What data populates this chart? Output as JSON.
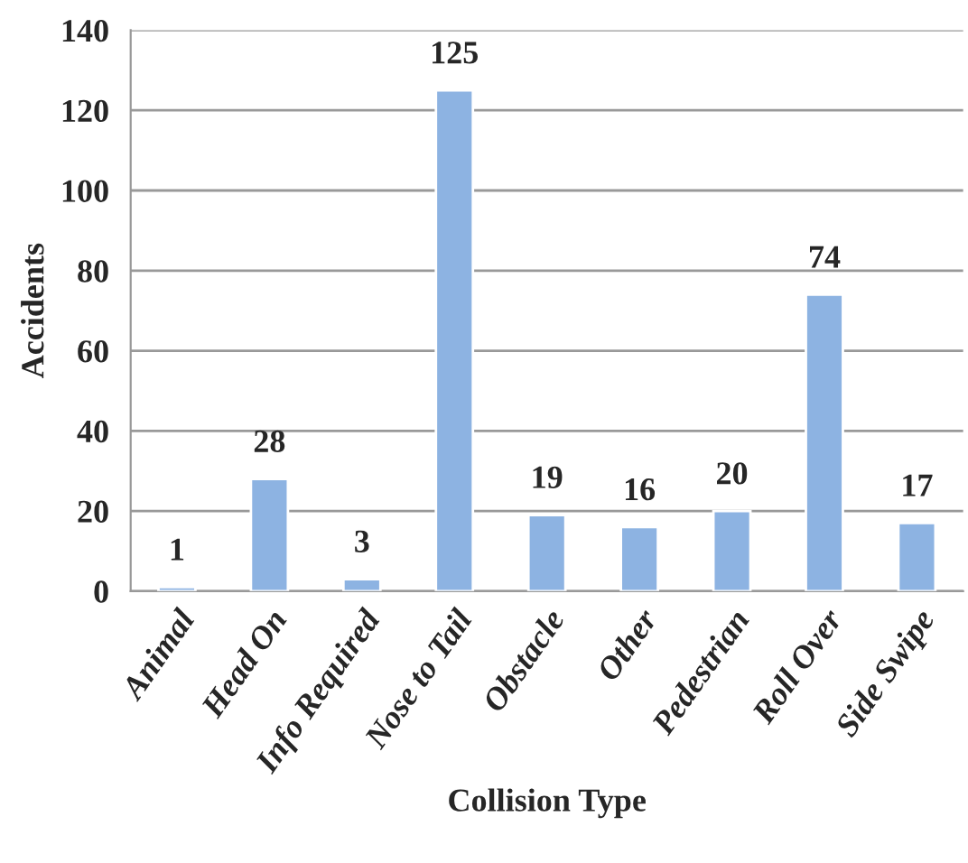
{
  "chart_data": {
    "type": "bar",
    "xlabel": "Collision Type",
    "ylabel": "Accidents",
    "categories": [
      "Animal",
      "Head On",
      "Info Required",
      "Nose to Tail",
      "Obstacle",
      "Other",
      "Pedestrian",
      "Roll Over",
      "Side Swipe"
    ],
    "values": [
      1,
      28,
      3,
      125,
      19,
      16,
      20,
      74,
      17
    ],
    "color": "#8db3e2",
    "ylim": [
      0,
      140
    ],
    "yticks": [
      0,
      20,
      40,
      60,
      80,
      100,
      120,
      140
    ],
    "grid": "y",
    "data_labels": true
  }
}
